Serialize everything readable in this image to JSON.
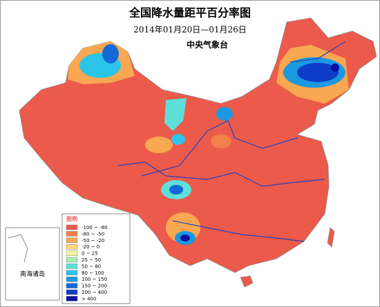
{
  "title": "全国降水量距平百分率图",
  "subtitle": "2014年01月20日—01月26日",
  "source": "中央气象台",
  "legend": {
    "title": "图例",
    "items": [
      {
        "label": "-100 ~ -80",
        "color": "#ec5a4c"
      },
      {
        "label": "-80 ~ -50",
        "color": "#f2804a"
      },
      {
        "label": "-50 ~ -20",
        "color": "#f8a850"
      },
      {
        "label": "-20 ~ 0",
        "color": "#fcd67a"
      },
      {
        "label": "0 ~ 25",
        "color": "#f4f4a0"
      },
      {
        "label": "25 ~ 50",
        "color": "#a8ecb0"
      },
      {
        "label": "50 ~ 80",
        "color": "#5ee0d8"
      },
      {
        "label": "80 ~ 100",
        "color": "#2cc4e8"
      },
      {
        "label": "100 ~ 150",
        "color": "#1c98e0"
      },
      {
        "label": "150 ~ 200",
        "color": "#1468d8"
      },
      {
        "label": "200 ~ 400",
        "color": "#0c3cc8"
      },
      {
        "label": "> 400",
        "color": "#0a10a0"
      }
    ]
  },
  "inset": {
    "label": "南海诸岛"
  }
}
